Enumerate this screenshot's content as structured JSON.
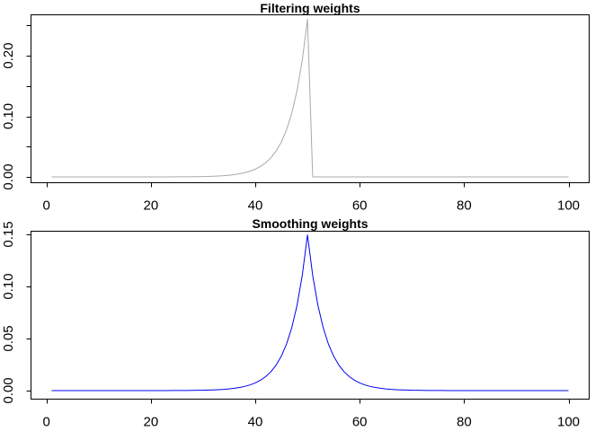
{
  "figure": {
    "background": "#FFFFFF",
    "axis_color": "#000000",
    "text_color": "#000000"
  },
  "chart_data": [
    {
      "type": "line",
      "title": "Filtering weights",
      "xlabel": "",
      "ylabel": "",
      "legend": "none",
      "grid": false,
      "x_start": 1,
      "x_step": 1,
      "x_ticks": [
        0,
        20,
        40,
        60,
        80,
        100
      ],
      "x_tick_labels": [
        "0",
        "20",
        "40",
        "60",
        "80",
        "100"
      ],
      "y_ticks": [
        0,
        0.05,
        0.1,
        0.15,
        0.2,
        0.25
      ],
      "y_tick_labels": [
        "0.00",
        "",
        "0.10",
        "",
        "0.20",
        ""
      ],
      "xlim": [
        -2.96,
        103.96
      ],
      "ylim": [
        -0.0096,
        0.2674
      ],
      "series": [
        {
          "name": "filtering-weights",
          "color": "#A9A9A9",
          "values": [
            0,
            0,
            0,
            0,
            0,
            0,
            1e-06,
            1e-06,
            1e-06,
            2e-06,
            2e-06,
            3e-06,
            4e-06,
            5e-06,
            7e-06,
            9e-06,
            1.3e-05,
            1.7e-05,
            2.3e-05,
            3.1e-05,
            4.2e-05,
            5.7e-05,
            7.7e-05,
            0.000104,
            0.00014,
            0.000189,
            0.000255,
            0.000345,
            0.000466,
            0.00063,
            0.000852,
            0.001151,
            0.001556,
            0.002102,
            0.002841,
            0.003839,
            0.005188,
            0.007011,
            0.009474,
            0.012802,
            0.017301,
            0.023379,
            0.031593,
            0.042694,
            0.057694,
            0.077965,
            0.105358,
            0.142376,
            0.1924,
            0.26,
            0,
            0,
            0,
            0,
            0,
            0,
            0,
            0,
            0,
            0,
            0,
            0,
            0,
            0,
            0,
            0,
            0,
            0,
            0,
            0,
            0,
            0,
            0,
            0,
            0,
            0,
            0,
            0,
            0,
            0,
            0,
            0,
            0,
            0,
            0,
            0,
            0,
            0,
            0,
            0,
            0,
            0,
            0,
            0,
            0,
            0,
            0,
            0,
            0,
            0
          ]
        }
      ]
    },
    {
      "type": "line",
      "title": "Smoothing weights",
      "xlabel": "",
      "ylabel": "",
      "legend": "none",
      "grid": false,
      "x_start": 1,
      "x_step": 1,
      "x_ticks": [
        0,
        20,
        40,
        60,
        80,
        100
      ],
      "x_tick_labels": [
        "0",
        "20",
        "40",
        "60",
        "80",
        "100"
      ],
      "y_ticks": [
        0,
        0.05,
        0.1,
        0.15
      ],
      "y_tick_labels": [
        "0.00",
        "0.05",
        "0.10",
        "0.15"
      ],
      "xlim": [
        -2.96,
        103.96
      ],
      "ylim": [
        -0.0082,
        0.153
      ],
      "series": [
        {
          "name": "smoothing-weights",
          "color": "#0000EE",
          "values": [
            0,
            0,
            0,
            0,
            0,
            0,
            0,
            1e-06,
            1e-06,
            1e-06,
            1e-06,
            2e-06,
            2e-06,
            3e-06,
            4e-06,
            5e-06,
            7e-06,
            1e-05,
            1.3e-05,
            1.8e-05,
            2.4e-05,
            3.3e-05,
            4.4e-05,
            5.9e-05,
            8e-05,
            0.000109,
            0.000147,
            0.000198,
            0.000268,
            0.000362,
            0.000489,
            0.000661,
            0.000894,
            0.001208,
            0.001632,
            0.002206,
            0.002981,
            0.004028,
            0.005444,
            0.007356,
            0.009941,
            0.013434,
            0.018154,
            0.024532,
            0.033152,
            0.0448,
            0.06054,
            0.081811,
            0.110556,
            0.1494,
            0.110556,
            0.081811,
            0.06054,
            0.0448,
            0.033152,
            0.024532,
            0.018154,
            0.013434,
            0.009941,
            0.007356,
            0.005444,
            0.004028,
            0.002981,
            0.002206,
            0.001632,
            0.001208,
            0.000894,
            0.000661,
            0.000489,
            0.000362,
            0.000268,
            0.000198,
            0.000147,
            0.000109,
            8e-05,
            5.9e-05,
            4.4e-05,
            3.3e-05,
            2.4e-05,
            1.8e-05,
            1.3e-05,
            1e-05,
            7e-06,
            5e-06,
            4e-06,
            3e-06,
            2e-06,
            2e-06,
            1e-06,
            1e-06,
            1e-06,
            1e-06,
            0,
            0,
            0,
            0,
            0,
            0,
            0,
            0
          ]
        }
      ]
    }
  ]
}
